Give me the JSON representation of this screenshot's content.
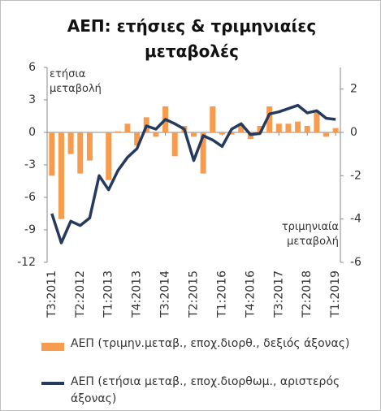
{
  "chart_data": {
    "type": "bar-line",
    "title": "ΑΕΠ: ετήσιες & τριμηνιαίες μεταβολές",
    "annotations": [
      "ετήσια μεταβολή",
      "τριμηνιαία μεταβολή"
    ],
    "categories": [
      "T3:2011",
      null,
      null,
      "T2:2012",
      null,
      null,
      "T1:2013",
      null,
      null,
      "T4:2013",
      null,
      null,
      "T3:2014",
      null,
      null,
      "T2:2015",
      null,
      null,
      "T1:2016",
      null,
      null,
      "T4:2016",
      null,
      null,
      "T3:2017",
      null,
      null,
      "T2:2018",
      null,
      null,
      "T1:2019"
    ],
    "series": [
      {
        "name": "ΑΕΠ (τριμην.μεταβ., εποχ.διορθ., δεξιός άξονας)",
        "type": "bar",
        "axis": "y2",
        "color": "#f79c4f",
        "values": [
          -2.0,
          -4.0,
          -1.0,
          -1.9,
          -1.3,
          0.0,
          -2.2,
          0.05,
          0.4,
          -0.6,
          0.7,
          -0.2,
          1.2,
          -1.1,
          0.3,
          -0.2,
          -1.9,
          1.2,
          -0.1,
          -0.1,
          0.4,
          -0.3,
          0.3,
          1.2,
          0.4,
          0.4,
          0.5,
          0.3,
          1.0,
          -0.2,
          0.2
        ]
      },
      {
        "name": "ΑΕΠ (ετήσια μεταβ., εποχ.διορθωμ., αριστερός άξονας)",
        "type": "line",
        "axis": "y",
        "color": "#253a5c",
        "values": [
          -7.5,
          -10.2,
          -8.2,
          -8.6,
          -7.9,
          -4.0,
          -5.3,
          -3.5,
          -2.3,
          -1.5,
          0.6,
          0.3,
          1.2,
          0.8,
          0.3,
          -2.6,
          -0.3,
          -0.7,
          -1.3,
          0.3,
          0.8,
          -0.2,
          -0.1,
          1.7,
          1.9,
          2.2,
          2.5,
          1.8,
          2.0,
          1.3,
          1.2
        ]
      }
    ],
    "ylim": [
      -12,
      6
    ],
    "yticks": [
      -12,
      -9,
      -6,
      -3,
      0,
      3,
      6
    ],
    "y2lim": [
      -6,
      3
    ],
    "y2ticks": [
      -6,
      -4,
      -2,
      0,
      2
    ]
  }
}
